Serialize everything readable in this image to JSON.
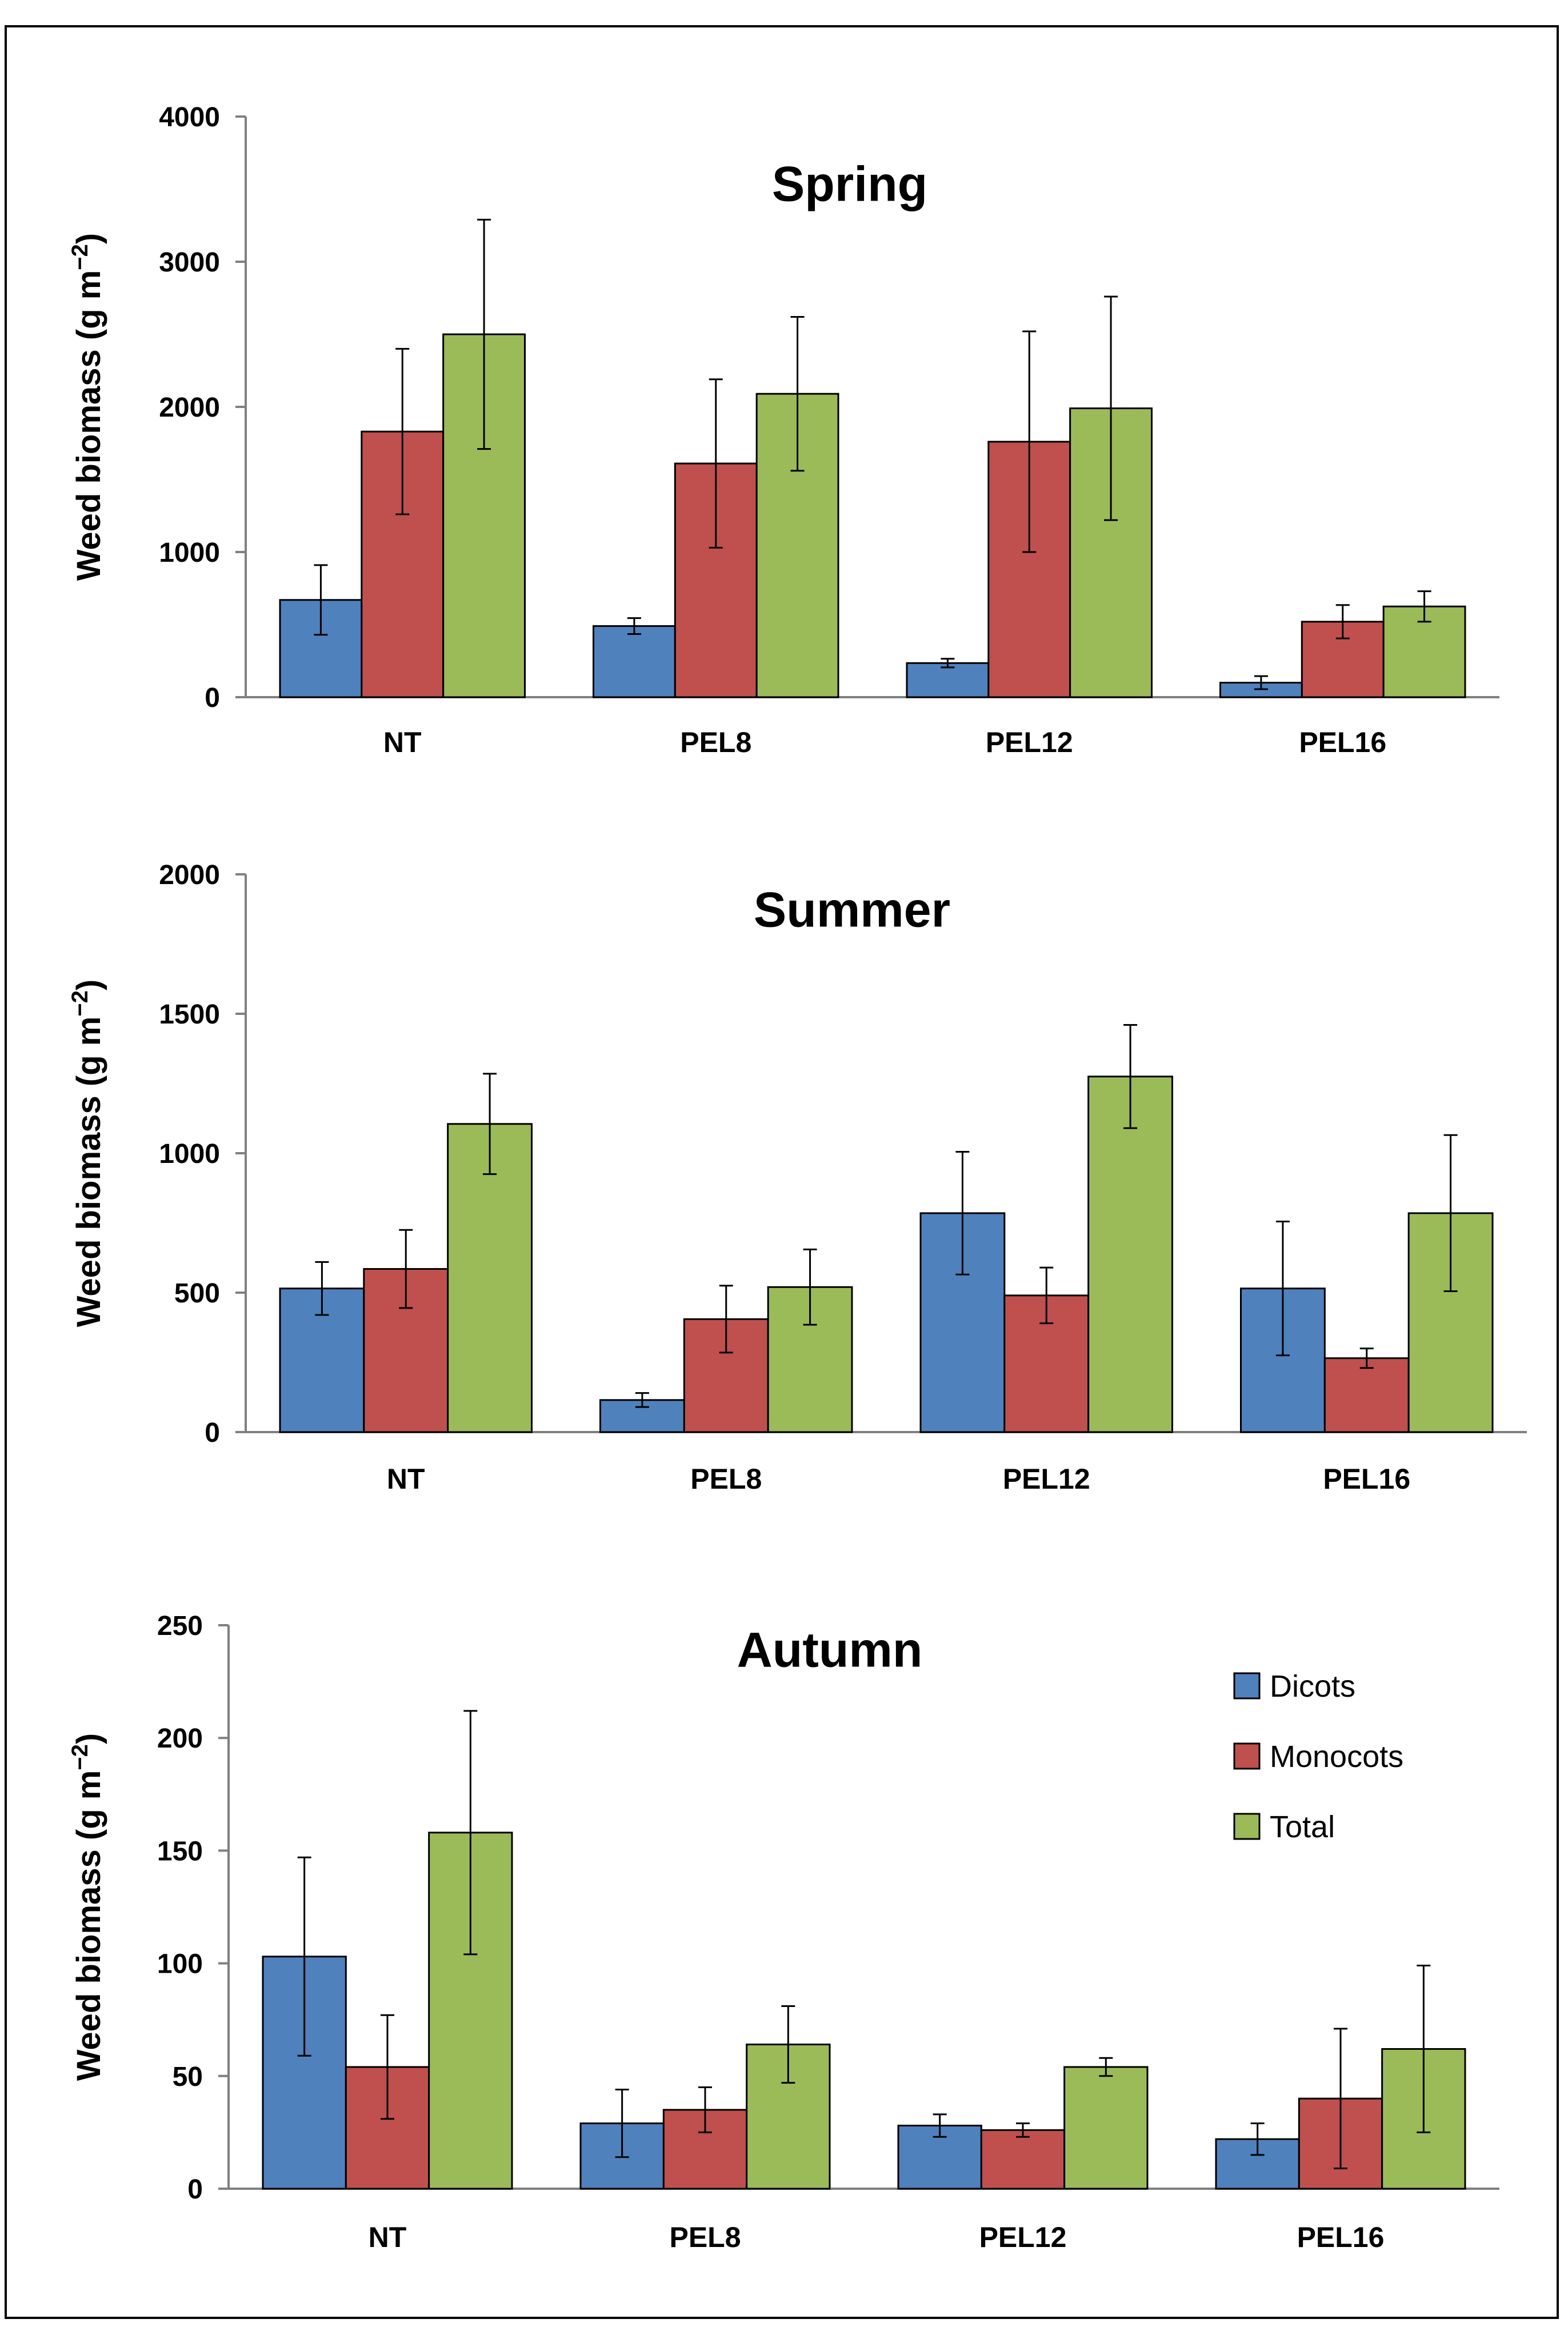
{
  "ylabel_prefix": "Weed biomass (g m",
  "ylabel_exponent": "−2",
  "ylabel_suffix": ")",
  "legend": [
    {
      "name": "Dicots",
      "color": "#4F81BD"
    },
    {
      "name": "Monocots",
      "color": "#C0504D"
    },
    {
      "name": "Total",
      "color": "#9BBB59"
    }
  ],
  "chart_data": [
    {
      "type": "bar",
      "title": "Spring",
      "xlabel": "",
      "ylabel": "Weed biomass (g m−2)",
      "categories": [
        "NT",
        "PEL8",
        "PEL12",
        "PEL16"
      ],
      "ylim": [
        0,
        4000
      ],
      "yticks": [
        0,
        1000,
        2000,
        3000,
        4000
      ],
      "series": [
        {
          "name": "Dicots",
          "values": [
            670,
            490,
            235,
            100
          ],
          "errors": [
            240,
            55,
            30,
            45
          ]
        },
        {
          "name": "Monocots",
          "values": [
            1830,
            1610,
            1760,
            520
          ],
          "errors": [
            570,
            580,
            760,
            115
          ]
        },
        {
          "name": "Total",
          "values": [
            2500,
            2090,
            1990,
            625
          ],
          "errors": [
            790,
            530,
            770,
            105
          ]
        }
      ]
    },
    {
      "type": "bar",
      "title": "Summer",
      "xlabel": "",
      "ylabel": "Weed biomass (g m−2)",
      "categories": [
        "NT",
        "PEL8",
        "PEL12",
        "PEL16"
      ],
      "ylim": [
        0,
        2000
      ],
      "yticks": [
        0,
        500,
        1000,
        1500,
        2000
      ],
      "series": [
        {
          "name": "Dicots",
          "values": [
            515,
            115,
            785,
            515
          ],
          "errors": [
            95,
            25,
            220,
            240
          ]
        },
        {
          "name": "Monocots",
          "values": [
            585,
            405,
            490,
            265
          ],
          "errors": [
            140,
            120,
            100,
            35
          ]
        },
        {
          "name": "Total",
          "values": [
            1105,
            520,
            1275,
            785
          ],
          "errors": [
            180,
            135,
            185,
            280
          ]
        }
      ]
    },
    {
      "type": "bar",
      "title": "Autumn",
      "xlabel": "",
      "ylabel": "Weed biomass (g m−2)",
      "categories": [
        "NT",
        "PEL8",
        "PEL12",
        "PEL16"
      ],
      "ylim": [
        0,
        250
      ],
      "yticks": [
        0,
        50,
        100,
        150,
        200,
        250
      ],
      "legend": "top-right",
      "series": [
        {
          "name": "Dicots",
          "values": [
            103,
            29,
            28,
            22
          ],
          "errors": [
            44,
            15,
            5,
            7
          ]
        },
        {
          "name": "Monocots",
          "values": [
            54,
            35,
            26,
            40
          ],
          "errors": [
            23,
            10,
            3,
            31
          ]
        },
        {
          "name": "Total",
          "values": [
            158,
            64,
            54,
            62
          ],
          "errors": [
            54,
            17,
            4,
            37
          ]
        }
      ]
    }
  ]
}
